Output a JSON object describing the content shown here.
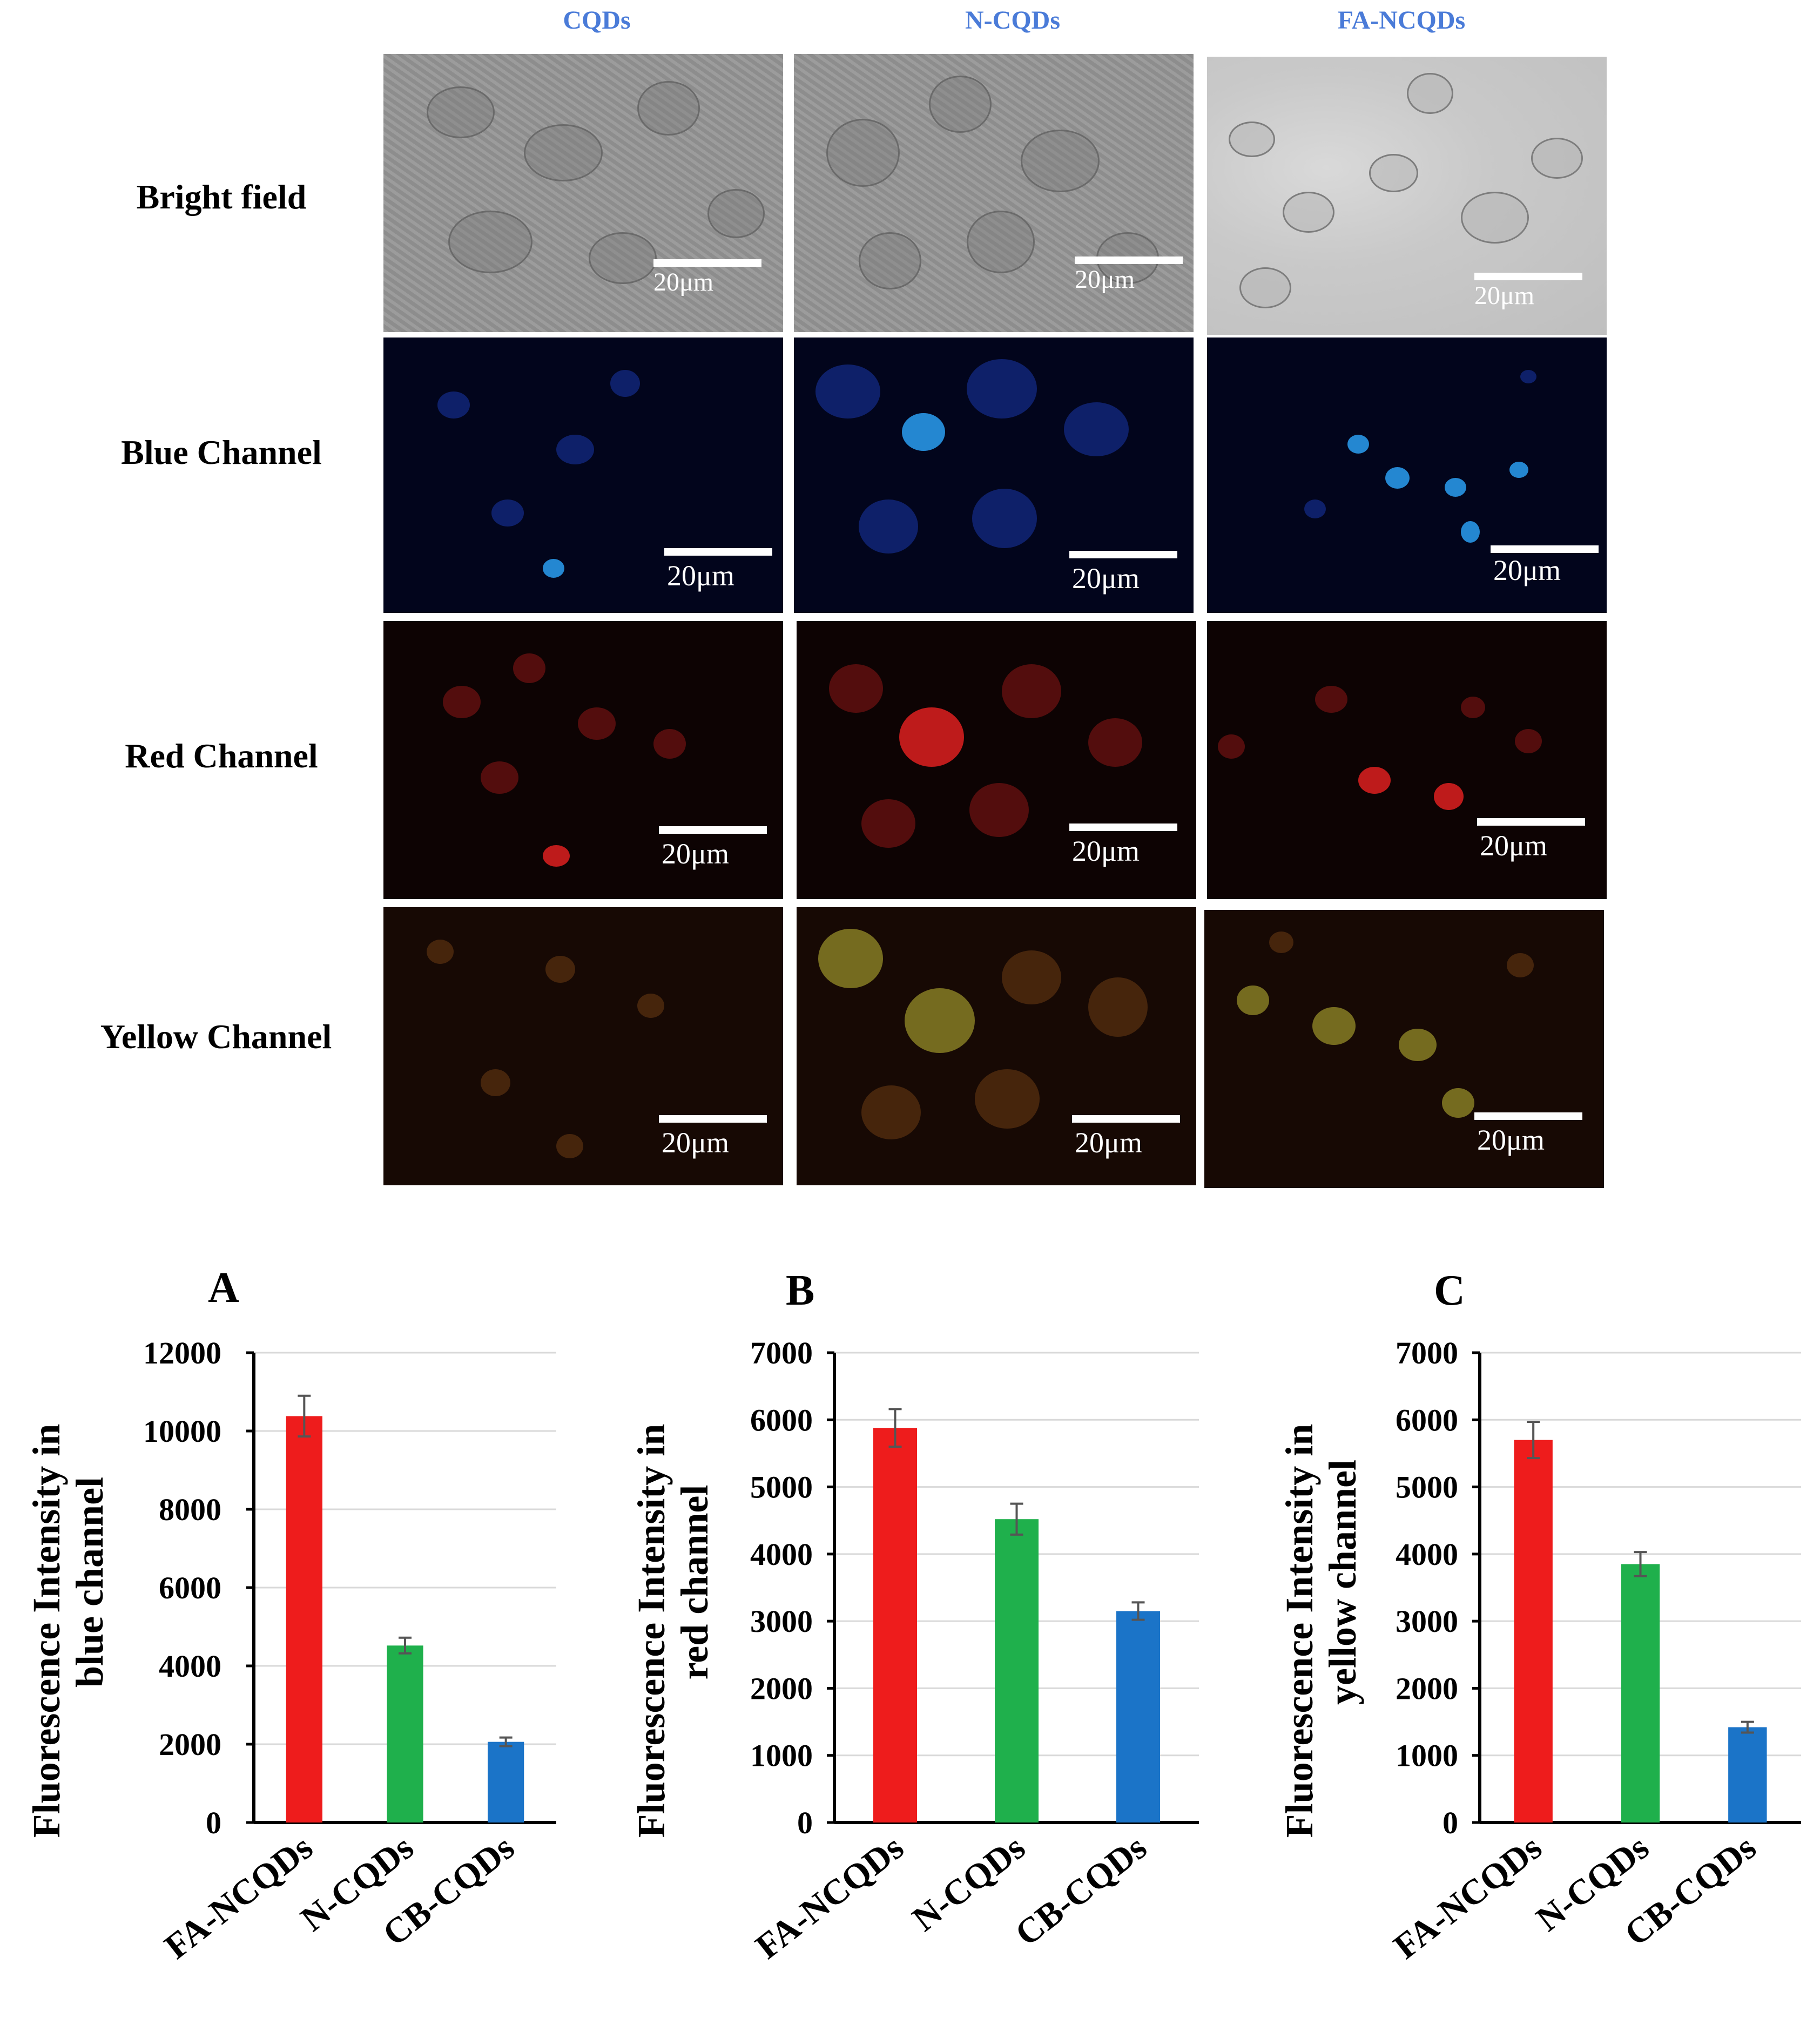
{
  "column_titles": [
    "CQDs",
    "N-CQDs",
    "FA-NCQDs"
  ],
  "row_labels": [
    "Bright field",
    "Blue Channel",
    "Red Channel",
    "Yellow Channel"
  ],
  "scale_bar_label": "20μm",
  "colors": {
    "column_title": "#4a7bd8",
    "fa_ncqds_bar": "#ee1c1c",
    "n_cqds_bar": "#1fb04c",
    "cb_cqds_bar": "#1b74c8",
    "gridline": "#d9d9d9",
    "axis": "#000000"
  },
  "chart_data": [
    {
      "type": "bar",
      "panel_letter": "A",
      "ylabel": "Fluorescence Intensity in blue channel",
      "xlabel": "",
      "categories": [
        "FA-NCQDs",
        "N-CQDs",
        "CB-CQDs"
      ],
      "values": [
        10380,
        4520,
        2060
      ],
      "errors": [
        520,
        200,
        110
      ],
      "ylim": [
        0,
        12000
      ],
      "yticks": [
        0,
        2000,
        4000,
        6000,
        8000,
        10000,
        12000
      ],
      "grid": true,
      "bar_colors": [
        "#ee1c1c",
        "#1fb04c",
        "#1b74c8"
      ]
    },
    {
      "type": "bar",
      "panel_letter": "B",
      "ylabel": "Fluorescence Intensity in red channel",
      "xlabel": "",
      "categories": [
        "FA-NCQDs",
        "N-CQDs",
        "CB-CQDs"
      ],
      "values": [
        5880,
        4520,
        3150
      ],
      "errors": [
        280,
        230,
        130
      ],
      "ylim": [
        0,
        7000
      ],
      "yticks": [
        0,
        1000,
        2000,
        3000,
        4000,
        5000,
        6000,
        7000
      ],
      "grid": true,
      "bar_colors": [
        "#ee1c1c",
        "#1fb04c",
        "#1b74c8"
      ]
    },
    {
      "type": "bar",
      "panel_letter": "C",
      "ylabel": "Fluorescence Intensity in yellow channel",
      "xlabel": "",
      "categories": [
        "FA-NCQDs",
        "N-CQDs",
        "CB-CQDs"
      ],
      "values": [
        5700,
        3850,
        1420
      ],
      "errors": [
        270,
        180,
        80
      ],
      "ylim": [
        0,
        7000
      ],
      "yticks": [
        0,
        1000,
        2000,
        3000,
        4000,
        5000,
        6000,
        7000
      ],
      "grid": true,
      "bar_colors": [
        "#ee1c1c",
        "#1fb04c",
        "#1b74c8"
      ]
    }
  ]
}
